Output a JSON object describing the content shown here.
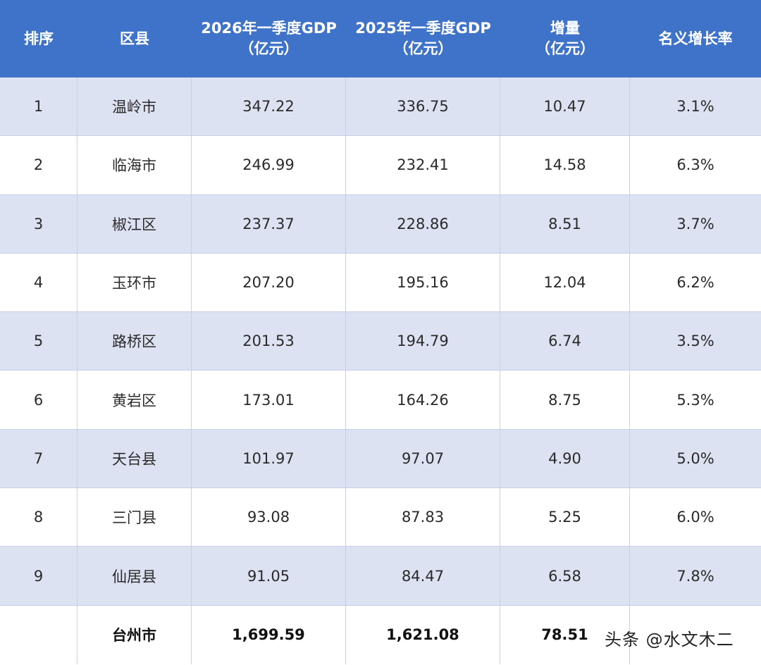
{
  "table": {
    "headers": [
      {
        "line1": "排序",
        "line2": ""
      },
      {
        "line1": "区县",
        "line2": ""
      },
      {
        "line1": "2026年一季度GDP",
        "line2": "（亿元）"
      },
      {
        "line1": "2025年一季度GDP",
        "line2": "（亿元）"
      },
      {
        "line1": "增量",
        "line2": "（亿元）"
      },
      {
        "line1": "名义增长率",
        "line2": ""
      }
    ],
    "rows": [
      {
        "rank": "1",
        "district": "温岭市",
        "gdp2026": "347.22",
        "gdp2025": "336.75",
        "increase": "10.47",
        "growth": "3.1%"
      },
      {
        "rank": "2",
        "district": "临海市",
        "gdp2026": "246.99",
        "gdp2025": "232.41",
        "increase": "14.58",
        "growth": "6.3%"
      },
      {
        "rank": "3",
        "district": "椒江区",
        "gdp2026": "237.37",
        "gdp2025": "228.86",
        "increase": "8.51",
        "growth": "3.7%"
      },
      {
        "rank": "4",
        "district": "玉环市",
        "gdp2026": "207.20",
        "gdp2025": "195.16",
        "increase": "12.04",
        "growth": "6.2%"
      },
      {
        "rank": "5",
        "district": "路桥区",
        "gdp2026": "201.53",
        "gdp2025": "194.79",
        "increase": "6.74",
        "growth": "3.5%"
      },
      {
        "rank": "6",
        "district": "黄岩区",
        "gdp2026": "173.01",
        "gdp2025": "164.26",
        "increase": "8.75",
        "growth": "5.3%"
      },
      {
        "rank": "7",
        "district": "天台县",
        "gdp2026": "101.97",
        "gdp2025": "97.07",
        "increase": "4.90",
        "growth": "5.0%"
      },
      {
        "rank": "8",
        "district": "三门县",
        "gdp2026": "93.08",
        "gdp2025": "87.83",
        "increase": "5.25",
        "growth": "6.0%"
      },
      {
        "rank": "9",
        "district": "仙居县",
        "gdp2026": "91.05",
        "gdp2025": "84.47",
        "increase": "6.58",
        "growth": "7.8%"
      }
    ],
    "total": {
      "rank": "",
      "district": "台州市",
      "gdp2026": "1,699.59",
      "gdp2025": "1,621.08",
      "increase": "78.51",
      "growth": ""
    }
  },
  "watermark": "头条 @水文木二",
  "colors": {
    "header_bg": "#3f73c9",
    "row_shaded": "#dde2f2",
    "row_plain": "#ffffff"
  }
}
